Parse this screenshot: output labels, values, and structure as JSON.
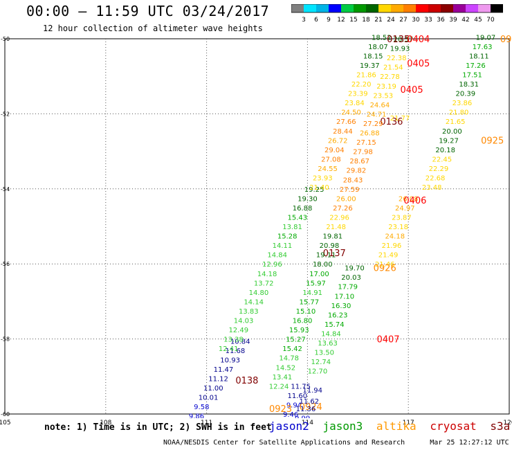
{
  "header": {
    "title": "00:00 – 11:59 UTC 03/24/2017",
    "subtitle": "12 hour collection of altimeter wave heights"
  },
  "color_scale": {
    "labels": [
      "3",
      "6",
      "9",
      "12",
      "15",
      "18",
      "21",
      "24",
      "27",
      "30",
      "33",
      "36",
      "39",
      "42",
      "45",
      "70"
    ],
    "colors": [
      "#808080",
      "#00e5ff",
      "#00b4e6",
      "#0000ff",
      "#00cc44",
      "#009900",
      "#006600",
      "#ffd700",
      "#ffaa00",
      "#ff7f00",
      "#ff0000",
      "#cc0000",
      "#8b0000",
      "#990099",
      "#cc44ff",
      "#ee99ee",
      "#000000"
    ]
  },
  "map": {
    "lon_labels": [
      "105",
      "108",
      "111",
      "114",
      "117",
      "120"
    ],
    "lat_labels": [
      "-50",
      "-52",
      "-54",
      "-56",
      "-58",
      "-60"
    ]
  },
  "tracks": [
    {
      "satellite": "jason2",
      "pass": "0138",
      "pass_color": "#800000",
      "points": [
        {
          "lat": -58.05,
          "lon": 112.0,
          "v": "10.84",
          "c": "#00008b"
        },
        {
          "lat": -58.3,
          "lon": 111.85,
          "v": "11.68",
          "c": "#00008b"
        },
        {
          "lat": -58.55,
          "lon": 111.7,
          "v": "10.93",
          "c": "#00008b"
        },
        {
          "lat": -58.8,
          "lon": 111.5,
          "v": "11.47",
          "c": "#00008b"
        },
        {
          "lat": -59.05,
          "lon": 111.35,
          "v": "11.12",
          "c": "#00008b"
        },
        {
          "lat": -59.3,
          "lon": 111.2,
          "v": "11.00",
          "c": "#00008b"
        },
        {
          "lat": -59.55,
          "lon": 111.05,
          "v": "10.01",
          "c": "#00008b"
        },
        {
          "lat": -59.8,
          "lon": 110.85,
          "v": "9.58",
          "c": "#0000cd"
        },
        {
          "lat": -60.05,
          "lon": 110.7,
          "v": "9.86",
          "c": "#0000cd"
        }
      ],
      "label_pos": {
        "lat": -59.1,
        "lon": 112.2
      }
    },
    {
      "satellite": "jason3",
      "pass": "0137",
      "pass_color": "#800000",
      "points": [
        {
          "lat": -54.0,
          "lon": 114.2,
          "v": "19.25",
          "c": "#006400"
        },
        {
          "lat": -54.25,
          "lon": 114.0,
          "v": "19.30",
          "c": "#006400"
        },
        {
          "lat": -54.5,
          "lon": 113.85,
          "v": "16.88",
          "c": "#006400"
        },
        {
          "lat": -54.75,
          "lon": 113.7,
          "v": "15.43",
          "c": "#00aa00"
        },
        {
          "lat": -55.0,
          "lon": 113.55,
          "v": "13.81",
          "c": "#33cc33"
        },
        {
          "lat": -55.25,
          "lon": 113.4,
          "v": "15.28",
          "c": "#00aa00"
        },
        {
          "lat": -55.5,
          "lon": 113.25,
          "v": "14.11",
          "c": "#33cc33"
        },
        {
          "lat": -55.75,
          "lon": 113.1,
          "v": "14.84",
          "c": "#33cc33"
        },
        {
          "lat": -56.0,
          "lon": 112.95,
          "v": "12.96",
          "c": "#33cc33"
        },
        {
          "lat": -56.25,
          "lon": 112.8,
          "v": "14.18",
          "c": "#33cc33"
        },
        {
          "lat": -56.5,
          "lon": 112.7,
          "v": "13.72",
          "c": "#33cc33"
        },
        {
          "lat": -56.75,
          "lon": 112.55,
          "v": "14.80",
          "c": "#33cc33"
        },
        {
          "lat": -57.0,
          "lon": 112.4,
          "v": "14.14",
          "c": "#33cc33"
        },
        {
          "lat": -57.25,
          "lon": 112.25,
          "v": "13.83",
          "c": "#33cc33"
        },
        {
          "lat": -57.5,
          "lon": 112.1,
          "v": "14.03",
          "c": "#33cc33"
        },
        {
          "lat": -57.75,
          "lon": 111.95,
          "v": "12.49",
          "c": "#33cc33"
        },
        {
          "lat": -58.0,
          "lon": 111.8,
          "v": "13.38",
          "c": "#33cc33"
        },
        {
          "lat": -58.25,
          "lon": 111.65,
          "v": "12.41",
          "c": "#33cc33"
        }
      ],
      "label_pos": {
        "lat": -55.7,
        "lon": 114.8
      }
    },
    {
      "satellite": "altika",
      "pass": "0136",
      "pass_color": "#800000",
      "points": [
        {
          "lat": -49.95,
          "lon": 116.2,
          "v": "18.52",
          "c": "#006400"
        },
        {
          "lat": -50.2,
          "lon": 116.1,
          "v": "18.07",
          "c": "#006400"
        },
        {
          "lat": -50.45,
          "lon": 115.95,
          "v": "18.15",
          "c": "#006400"
        },
        {
          "lat": -50.7,
          "lon": 115.85,
          "v": "19.37",
          "c": "#006400"
        },
        {
          "lat": -50.95,
          "lon": 115.75,
          "v": "21.86",
          "c": "#ffd700"
        },
        {
          "lat": -51.2,
          "lon": 115.6,
          "v": "22.20",
          "c": "#ffd700"
        },
        {
          "lat": -51.45,
          "lon": 115.5,
          "v": "23.39",
          "c": "#ffd700"
        },
        {
          "lat": -51.7,
          "lon": 115.4,
          "v": "23.84",
          "c": "#ffd700"
        },
        {
          "lat": -51.95,
          "lon": 115.3,
          "v": "24.50",
          "c": "#ffaa00"
        },
        {
          "lat": -52.2,
          "lon": 115.15,
          "v": "27.66",
          "c": "#ff7f00"
        },
        {
          "lat": -52.45,
          "lon": 115.05,
          "v": "28.44",
          "c": "#ff7f00"
        },
        {
          "lat": -52.7,
          "lon": 114.9,
          "v": "26.72",
          "c": "#ffaa00"
        },
        {
          "lat": -52.95,
          "lon": 114.8,
          "v": "29.04",
          "c": "#ff7f00"
        },
        {
          "lat": -53.2,
          "lon": 114.7,
          "v": "27.08",
          "c": "#ff7f00"
        },
        {
          "lat": -53.45,
          "lon": 114.6,
          "v": "24.55",
          "c": "#ffaa00"
        },
        {
          "lat": -53.7,
          "lon": 114.45,
          "v": "23.93",
          "c": "#ffd700"
        },
        {
          "lat": -53.95,
          "lon": 114.35,
          "v": "21.40",
          "c": "#ffd700"
        }
      ],
      "label_pos": {
        "lat": -52.2,
        "lon": 116.5
      }
    },
    {
      "satellite": "jason3",
      "pass": "0407",
      "pass_color": "#ff0000",
      "points": [
        {
          "lat": -50.0,
          "lon": 116.85,
          "v": "20.37",
          "c": "#006400"
        },
        {
          "lat": -50.25,
          "lon": 116.75,
          "v": "19.93",
          "c": "#006400"
        },
        {
          "lat": -50.5,
          "lon": 116.65,
          "v": "22.38",
          "c": "#ffd700"
        },
        {
          "lat": -50.75,
          "lon": 116.55,
          "v": "21.54",
          "c": "#ffd700"
        },
        {
          "lat": -51.0,
          "lon": 116.45,
          "v": "22.78",
          "c": "#ffd700"
        },
        {
          "lat": -51.25,
          "lon": 116.35,
          "v": "23.19",
          "c": "#ffd700"
        },
        {
          "lat": -51.5,
          "lon": 116.25,
          "v": "23.53",
          "c": "#ffd700"
        },
        {
          "lat": -51.75,
          "lon": 116.15,
          "v": "24.64",
          "c": "#ffaa00"
        },
        {
          "lat": -52.0,
          "lon": 116.05,
          "v": "24.71",
          "c": "#ffaa00"
        },
        {
          "lat": -52.25,
          "lon": 115.95,
          "v": "27.29",
          "c": "#ff7f00"
        },
        {
          "lat": -52.5,
          "lon": 115.85,
          "v": "26.88",
          "c": "#ffaa00"
        },
        {
          "lat": -52.75,
          "lon": 115.75,
          "v": "27.15",
          "c": "#ff7f00"
        },
        {
          "lat": -53.0,
          "lon": 115.65,
          "v": "27.98",
          "c": "#ff7f00"
        },
        {
          "lat": -53.25,
          "lon": 115.55,
          "v": "28.67",
          "c": "#ff7f00"
        },
        {
          "lat": -53.5,
          "lon": 115.45,
          "v": "29.82",
          "c": "#ff7f00"
        },
        {
          "lat": -53.75,
          "lon": 115.35,
          "v": "28.43",
          "c": "#ff7f00"
        },
        {
          "lat": -54.0,
          "lon": 115.25,
          "v": "27.59",
          "c": "#ff7f00"
        },
        {
          "lat": -54.25,
          "lon": 115.15,
          "v": "26.00",
          "c": "#ffaa00"
        },
        {
          "lat": -54.5,
          "lon": 115.05,
          "v": "27.26",
          "c": "#ff7f00"
        },
        {
          "lat": -54.75,
          "lon": 114.95,
          "v": "22.96",
          "c": "#ffd700"
        },
        {
          "lat": -55.0,
          "lon": 114.85,
          "v": "21.48",
          "c": "#ffd700"
        },
        {
          "lat": -55.25,
          "lon": 114.75,
          "v": "19.81",
          "c": "#006400"
        },
        {
          "lat": -55.5,
          "lon": 114.65,
          "v": "20.98",
          "c": "#006400"
        },
        {
          "lat": -55.75,
          "lon": 114.55,
          "v": "19.11",
          "c": "#006400"
        },
        {
          "lat": -56.0,
          "lon": 114.45,
          "v": "18.00",
          "c": "#006400"
        },
        {
          "lat": -56.25,
          "lon": 114.35,
          "v": "17.00",
          "c": "#00aa00"
        },
        {
          "lat": -56.5,
          "lon": 114.25,
          "v": "15.97",
          "c": "#00aa00"
        },
        {
          "lat": -56.75,
          "lon": 114.15,
          "v": "14.91",
          "c": "#33cc33"
        },
        {
          "lat": -57.0,
          "lon": 114.05,
          "v": "15.77",
          "c": "#00aa00"
        },
        {
          "lat": -57.25,
          "lon": 113.95,
          "v": "15.10",
          "c": "#00aa00"
        },
        {
          "lat": -57.5,
          "lon": 113.85,
          "v": "16.80",
          "c": "#00aa00"
        },
        {
          "lat": -57.75,
          "lon": 113.75,
          "v": "15.93",
          "c": "#00aa00"
        },
        {
          "lat": -58.0,
          "lon": 113.65,
          "v": "15.27",
          "c": "#00aa00"
        },
        {
          "lat": -58.25,
          "lon": 113.55,
          "v": "15.42",
          "c": "#00aa00"
        },
        {
          "lat": -58.5,
          "lon": 113.45,
          "v": "14.78",
          "c": "#33cc33"
        },
        {
          "lat": -58.75,
          "lon": 113.35,
          "v": "14.52",
          "c": "#33cc33"
        },
        {
          "lat": -59.0,
          "lon": 113.25,
          "v": "13.41",
          "c": "#33cc33"
        },
        {
          "lat": -59.25,
          "lon": 113.15,
          "v": "12.24",
          "c": "#33cc33"
        }
      ],
      "label_pos": {
        "lat": -58.0,
        "lon": 116.4
      }
    },
    {
      "satellite": "jason2",
      "pass": "0924",
      "pass_color": "#ff8800",
      "points": [
        {
          "lat": -59.25,
          "lon": 113.8,
          "v": "11.75",
          "c": "#00008b"
        },
        {
          "lat": -59.5,
          "lon": 113.7,
          "v": "11.60",
          "c": "#00008b"
        },
        {
          "lat": -59.75,
          "lon": 113.6,
          "v": "9.94",
          "c": "#0000cd"
        },
        {
          "lat": -60.0,
          "lon": 113.5,
          "v": "9.46",
          "c": "#0000cd"
        },
        {
          "lat": -60.2,
          "lon": 113.4,
          "v": "8.72",
          "c": "#00b4e6"
        }
      ],
      "label_pos": {
        "lat": -59.8,
        "lon": 114.1
      }
    },
    {
      "satellite": "jason3",
      "pass": "",
      "pass_color": "#000000",
      "points": [
        {
          "lat": -56.1,
          "lon": 115.4,
          "v": "19.70",
          "c": "#006400"
        },
        {
          "lat": -56.35,
          "lon": 115.3,
          "v": "20.03",
          "c": "#006400"
        },
        {
          "lat": -56.6,
          "lon": 115.2,
          "v": "17.79",
          "c": "#00aa00"
        },
        {
          "lat": -56.85,
          "lon": 115.1,
          "v": "17.10",
          "c": "#00aa00"
        },
        {
          "lat": -57.1,
          "lon": 115.0,
          "v": "16.30",
          "c": "#00aa00"
        },
        {
          "lat": -57.35,
          "lon": 114.9,
          "v": "16.23",
          "c": "#00aa00"
        },
        {
          "lat": -57.6,
          "lon": 114.8,
          "v": "15.74",
          "c": "#00aa00"
        },
        {
          "lat": -57.85,
          "lon": 114.7,
          "v": "14.84",
          "c": "#33cc33"
        },
        {
          "lat": -58.1,
          "lon": 114.6,
          "v": "13.63",
          "c": "#33cc33"
        },
        {
          "lat": -58.35,
          "lon": 114.5,
          "v": "13.50",
          "c": "#33cc33"
        },
        {
          "lat": -58.6,
          "lon": 114.4,
          "v": "12.74",
          "c": "#33cc33"
        },
        {
          "lat": -58.85,
          "lon": 114.3,
          "v": "12.70",
          "c": "#33cc33"
        },
        {
          "lat": -59.35,
          "lon": 114.15,
          "v": "11.94",
          "c": "#00008b"
        },
        {
          "lat": -59.65,
          "lon": 114.05,
          "v": "11.62",
          "c": "#00008b"
        },
        {
          "lat": -59.85,
          "lon": 113.95,
          "v": "11.36",
          "c": "#00008b"
        },
        {
          "lat": -60.1,
          "lon": 113.85,
          "v": "9.99",
          "c": "#0000cd"
        }
      ],
      "label_pos": {
        "lat": -56.1,
        "lon": 116.3
      }
    },
    {
      "satellite": "jason3",
      "pass": "0406",
      "pass_color": "#ff0000",
      "points": [
        {
          "lat": -52.1,
          "lon": 116.75,
          "v": "21.77",
          "c": "#ffd700"
        },
        {
          "lat": -54.25,
          "lon": 117.0,
          "v": "26.08",
          "c": "#ffaa00"
        },
        {
          "lat": -54.5,
          "lon": 116.9,
          "v": "24.97",
          "c": "#ffaa00"
        },
        {
          "lat": -54.75,
          "lon": 116.8,
          "v": "23.87",
          "c": "#ffd700"
        },
        {
          "lat": -55.0,
          "lon": 116.7,
          "v": "23.18",
          "c": "#ffd700"
        },
        {
          "lat": -55.25,
          "lon": 116.6,
          "v": "24.18",
          "c": "#ffaa00"
        },
        {
          "lat": -55.5,
          "lon": 116.5,
          "v": "21.96",
          "c": "#ffd700"
        },
        {
          "lat": -55.75,
          "lon": 116.4,
          "v": "21.49",
          "c": "#ffd700"
        },
        {
          "lat": -56.0,
          "lon": 116.3,
          "v": "21.46",
          "c": "#ffd700"
        }
      ],
      "label_pos": {
        "lat": -54.3,
        "lon": 117.2
      }
    },
    {
      "satellite": "altika",
      "pass": "0925",
      "pass_color": "#ff8800",
      "points": [
        {
          "lat": -49.95,
          "lon": 119.3,
          "v": "19.07",
          "c": "#006400"
        },
        {
          "lat": -50.2,
          "lon": 119.2,
          "v": "17.63",
          "c": "#00aa00"
        },
        {
          "lat": -50.45,
          "lon": 119.1,
          "v": "18.11",
          "c": "#006400"
        },
        {
          "lat": -50.7,
          "lon": 119.0,
          "v": "17.26",
          "c": "#00aa00"
        },
        {
          "lat": -50.95,
          "lon": 118.9,
          "v": "17.51",
          "c": "#00aa00"
        },
        {
          "lat": -51.2,
          "lon": 118.8,
          "v": "18.31",
          "c": "#006400"
        },
        {
          "lat": -51.45,
          "lon": 118.7,
          "v": "20.39",
          "c": "#006400"
        },
        {
          "lat": -51.7,
          "lon": 118.6,
          "v": "23.86",
          "c": "#ffd700"
        },
        {
          "lat": -51.95,
          "lon": 118.5,
          "v": "21.80",
          "c": "#ffd700"
        },
        {
          "lat": -52.2,
          "lon": 118.4,
          "v": "21.65",
          "c": "#ffd700"
        },
        {
          "lat": -52.45,
          "lon": 118.3,
          "v": "20.00",
          "c": "#006400"
        },
        {
          "lat": -52.7,
          "lon": 118.2,
          "v": "19.27",
          "c": "#006400"
        },
        {
          "lat": -52.95,
          "lon": 118.1,
          "v": "20.18",
          "c": "#006400"
        },
        {
          "lat": -53.2,
          "lon": 118.0,
          "v": "22.45",
          "c": "#ffd700"
        },
        {
          "lat": -53.45,
          "lon": 117.9,
          "v": "22.29",
          "c": "#ffd700"
        },
        {
          "lat": -53.7,
          "lon": 117.8,
          "v": "22.68",
          "c": "#ffd700"
        },
        {
          "lat": -53.95,
          "lon": 117.7,
          "v": "23.48",
          "c": "#ffd700"
        }
      ],
      "label_pos": {
        "lat": -52.7,
        "lon": 119.5
      }
    }
  ],
  "extra_labels": [
    {
      "text": "0135",
      "lat": -50.0,
      "lon": 116.7,
      "color": "#800000"
    },
    {
      "text": "0404",
      "lat": -50.0,
      "lon": 117.3,
      "color": "#ff0000"
    },
    {
      "text": "0405",
      "lat": -50.65,
      "lon": 117.3,
      "color": "#ff0000"
    },
    {
      "text": "0405",
      "lat": -51.35,
      "lon": 117.1,
      "color": "#ff0000"
    },
    {
      "text": "0926",
      "lat": -56.1,
      "lon": 116.3,
      "color": "#ff8800"
    },
    {
      "text": "0923",
      "lat": -59.85,
      "lon": 113.2,
      "color": "#ff8800"
    },
    {
      "text": "09",
      "lat": -50.0,
      "lon": 119.9,
      "color": "#ff8800"
    }
  ],
  "note": "note: 1) Time is in UTC; 2) SWH is in feet",
  "satellites_legend": [
    {
      "name": "jason2",
      "color": "#0000cc"
    },
    {
      "name": "jason3",
      "color": "#009900"
    },
    {
      "name": "altika",
      "color": "#ff9900"
    },
    {
      "name": "cryosat",
      "color": "#cc0000"
    },
    {
      "name": "s3a",
      "color": "#800000"
    }
  ],
  "footer": {
    "credit": "NOAA/NESDIS Center for Satellite Applications and Research",
    "timestamp": "Mar 25 12:27:12 UTC 2017"
  }
}
